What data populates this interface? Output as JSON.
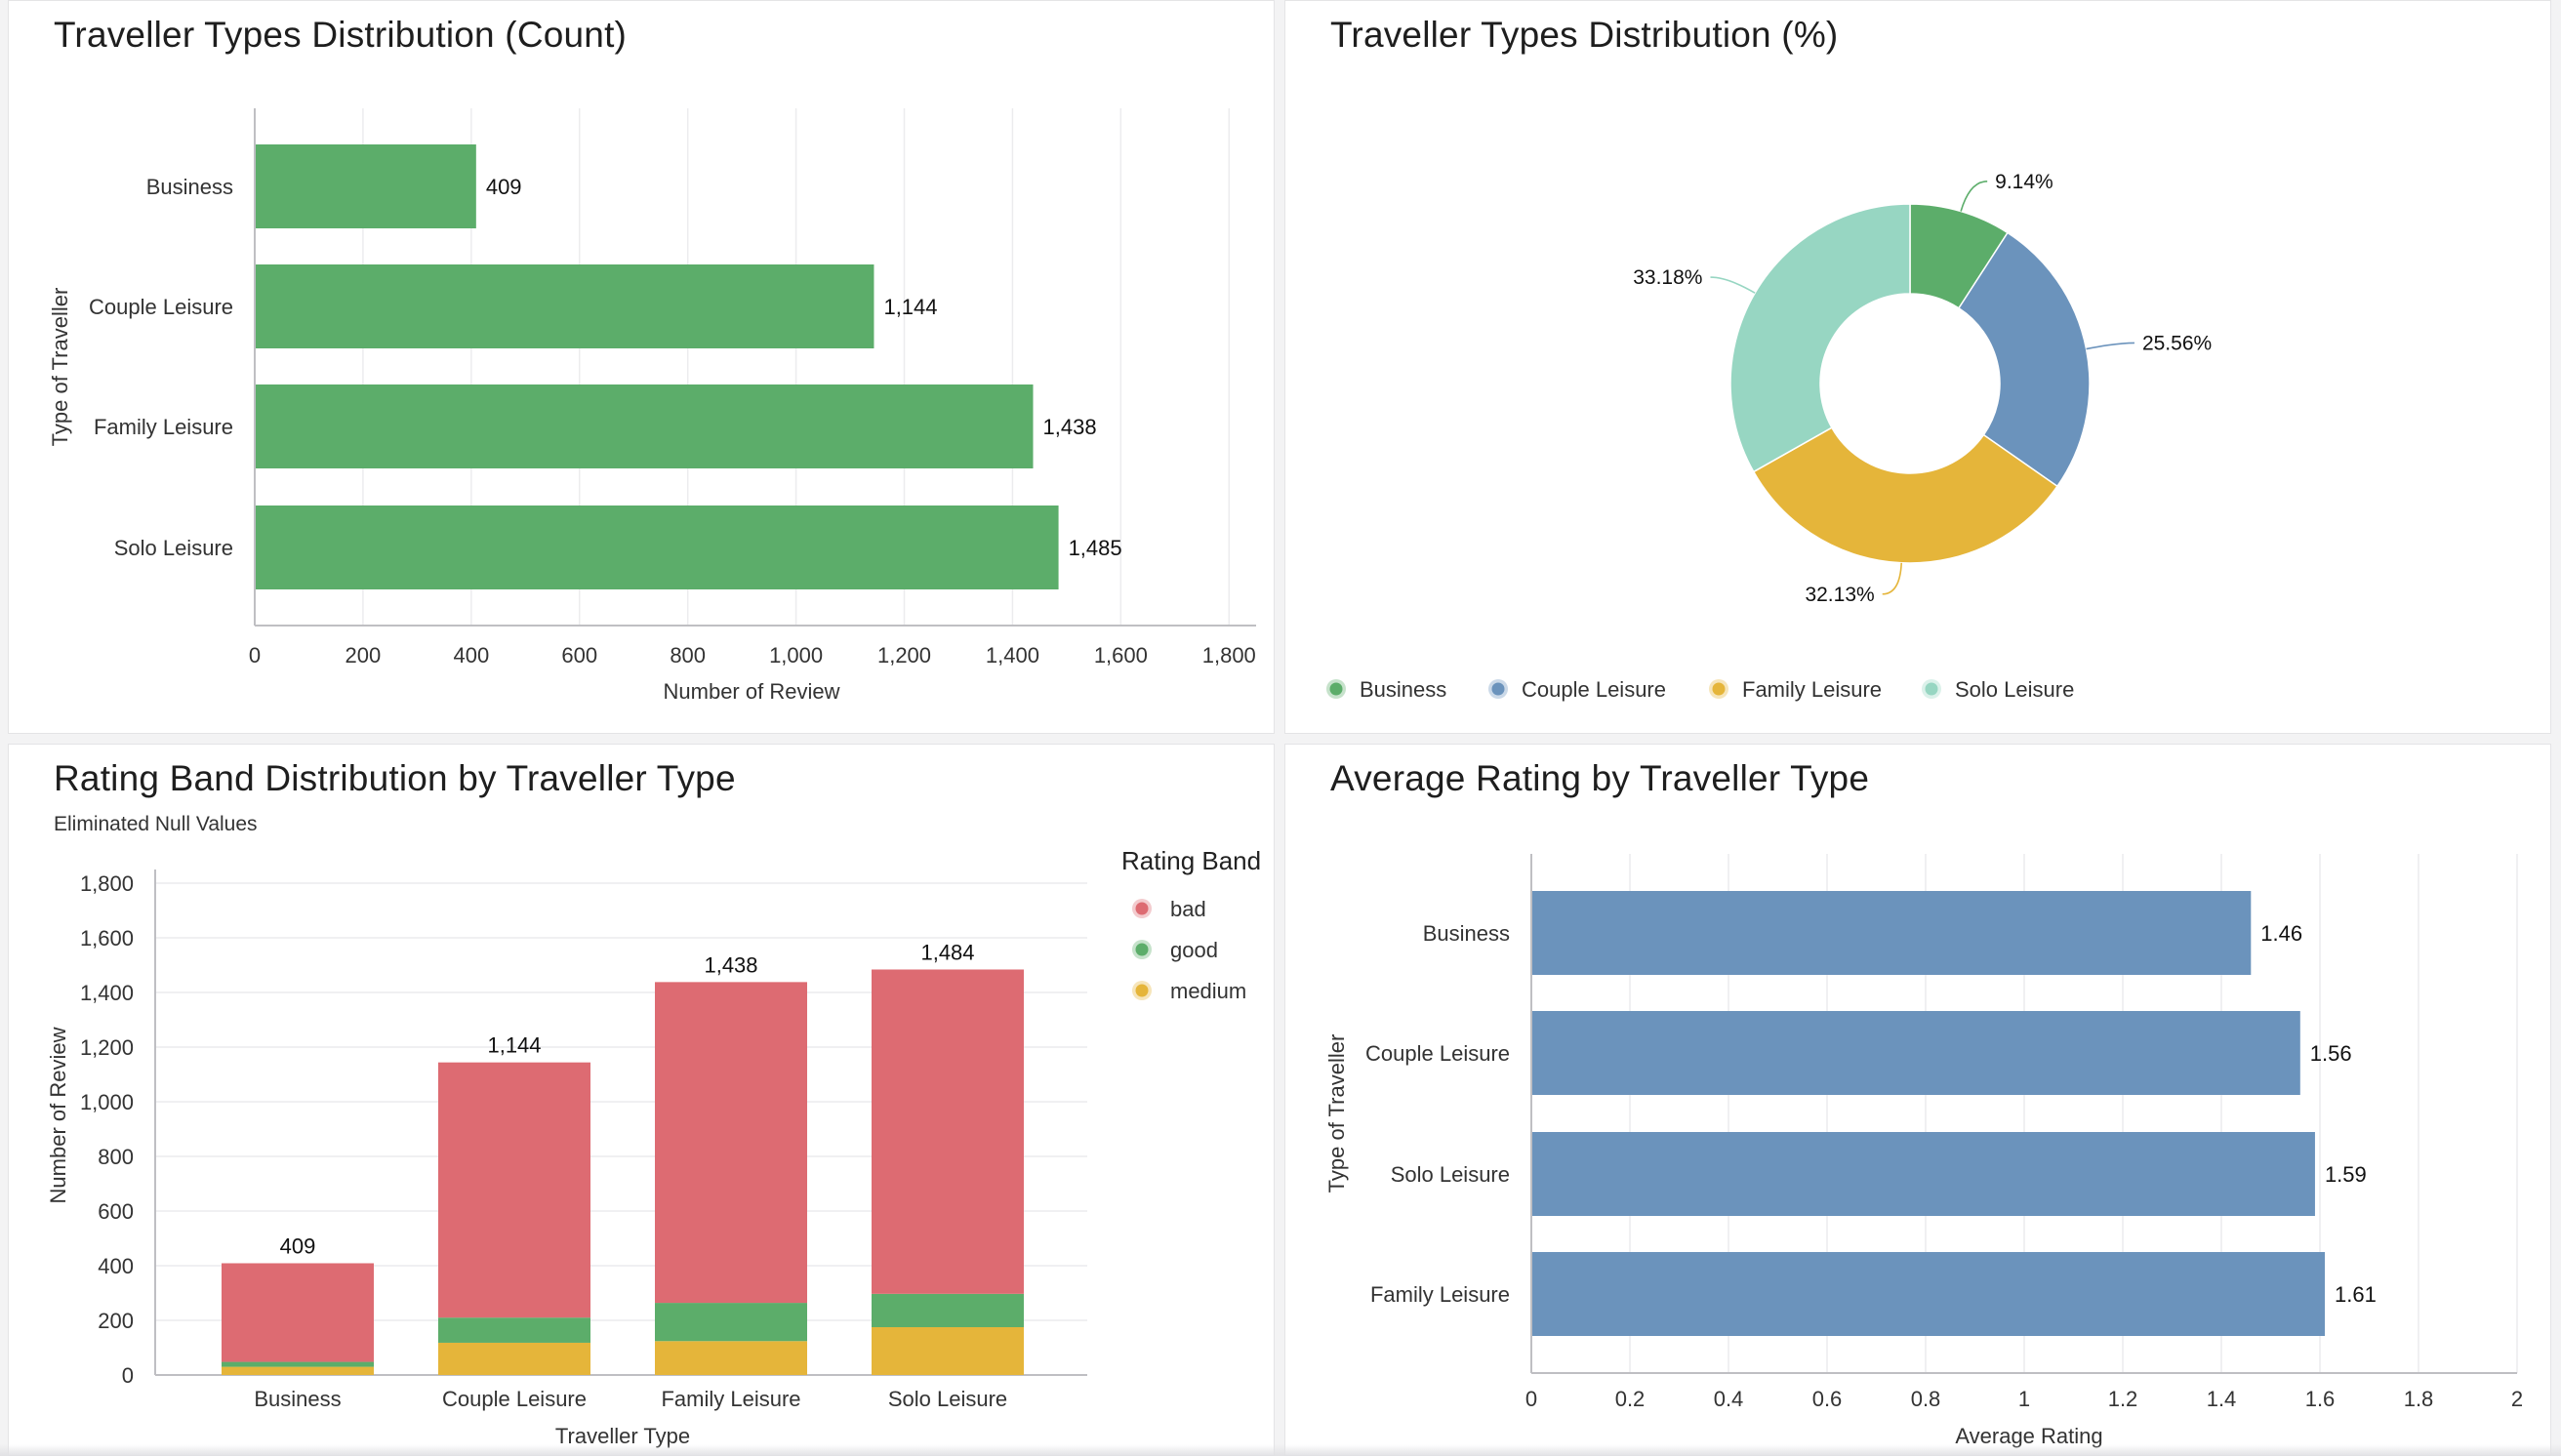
{
  "colors": {
    "green": "#5cad6a",
    "blue": "#6b93bc",
    "yellow": "#e5b53a",
    "teal": "#97d6c2",
    "red": "#dd6b72",
    "grid": "#ececee",
    "axis": "#bfbfc3"
  },
  "charts": {
    "count": {
      "title": "Traveller Types Distribution (Count)",
      "xlabel": "Number of Review",
      "ylabel": "Type of Traveller",
      "ticks": [
        "0",
        "200",
        "400",
        "600",
        "800",
        "1,000",
        "1,200",
        "1,400",
        "1,600",
        "1,800"
      ],
      "labels": [
        "409",
        "1,144",
        "1,438",
        "1,485"
      ]
    },
    "pct": {
      "title": "Traveller Types Distribution (%)",
      "labels": [
        "9.14%",
        "25.56%",
        "32.13%",
        "33.18%"
      ],
      "legend": [
        "Business",
        "Couple Leisure",
        "Family Leisure",
        "Solo Leisure"
      ]
    },
    "band": {
      "title": "Rating Band Distribution by Traveller Type",
      "subtitle": "Eliminated Null Values",
      "xlabel": "Traveller Type",
      "ylabel": "Number of Review",
      "legend_title": "Rating Band",
      "ticks": [
        "0",
        "200",
        "400",
        "600",
        "800",
        "1,000",
        "1,200",
        "1,400",
        "1,600",
        "1,800"
      ],
      "labels": [
        "409",
        "1,144",
        "1,438",
        "1,484"
      ]
    },
    "avg": {
      "title": "Average Rating by Traveller Type",
      "xlabel": "Average Rating",
      "ylabel": "Type of Traveller",
      "ticks": [
        "0",
        "0.2",
        "0.4",
        "0.6",
        "0.8",
        "1",
        "1.2",
        "1.4",
        "1.6",
        "1.8",
        "2"
      ],
      "labels": [
        "1.46",
        "1.56",
        "1.59",
        "1.61"
      ]
    }
  },
  "chart_data": [
    {
      "type": "bar",
      "orientation": "horizontal",
      "title": "Traveller Types Distribution (Count)",
      "xlabel": "Number of Review",
      "ylabel": "Type of Traveller",
      "categories": [
        "Business",
        "Couple Leisure",
        "Family Leisure",
        "Solo Leisure"
      ],
      "values": [
        409,
        1144,
        1438,
        1485
      ],
      "xlim": [
        0,
        1850
      ],
      "grid": true
    },
    {
      "type": "pie",
      "title": "Traveller Types Distribution (%)",
      "categories": [
        "Business",
        "Couple Leisure",
        "Family Leisure",
        "Solo Leisure"
      ],
      "values": [
        9.14,
        25.56,
        32.13,
        33.18
      ],
      "donut": true,
      "legend_position": "bottom"
    },
    {
      "type": "bar",
      "stacked": true,
      "title": "Rating Band Distribution by Traveller Type",
      "subtitle": "Eliminated Null Values",
      "xlabel": "Traveller Type",
      "ylabel": "Number of Review",
      "categories": [
        "Business",
        "Couple Leisure",
        "Family Leisure",
        "Solo Leisure"
      ],
      "series": [
        {
          "name": "medium",
          "values": [
            30,
            118,
            124,
            175
          ]
        },
        {
          "name": "good",
          "values": [
            18,
            92,
            140,
            122
          ]
        },
        {
          "name": "bad",
          "values": [
            361,
            934,
            1174,
            1187
          ]
        }
      ],
      "totals": [
        409,
        1144,
        1438,
        1484
      ],
      "legend_title": "Rating Band",
      "legend_order": [
        "bad",
        "good",
        "medium"
      ],
      "legend_position": "right",
      "ylim": [
        0,
        1800
      ],
      "grid": true
    },
    {
      "type": "bar",
      "orientation": "horizontal",
      "title": "Average Rating by Traveller Type",
      "xlabel": "Average Rating",
      "ylabel": "Type of Traveller",
      "categories": [
        "Business",
        "Couple Leisure",
        "Solo Leisure",
        "Family Leisure"
      ],
      "values": [
        1.46,
        1.56,
        1.59,
        1.61
      ],
      "xlim": [
        0,
        2
      ],
      "grid": true
    }
  ]
}
